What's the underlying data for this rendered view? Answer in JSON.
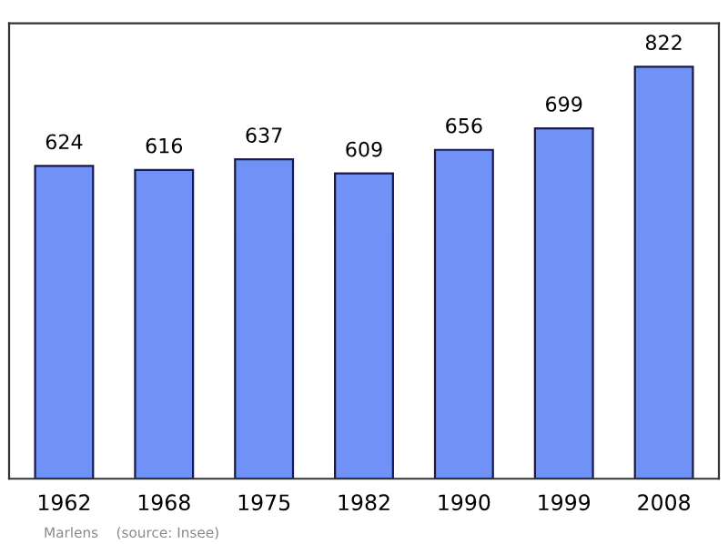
{
  "chart_data": {
    "type": "bar",
    "categories": [
      "1962",
      "1968",
      "1975",
      "1982",
      "1990",
      "1999",
      "2008"
    ],
    "values": [
      624,
      616,
      637,
      609,
      656,
      699,
      822
    ],
    "color": "#7092f7",
    "data_labels": true,
    "grid": false,
    "legend": false,
    "annotations": [
      "Marlens    (source: Insee)"
    ]
  }
}
